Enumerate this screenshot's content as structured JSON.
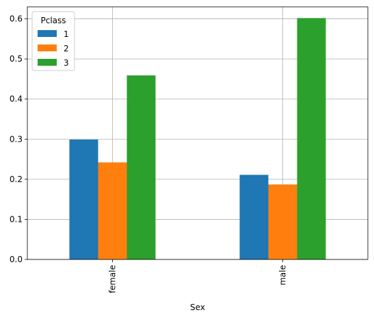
{
  "chart_data": {
    "type": "bar",
    "title": "",
    "xlabel": "Sex",
    "ylabel": "",
    "categories": [
      "female",
      "male"
    ],
    "series": [
      {
        "name": "1",
        "values": [
          0.299,
          0.211
        ],
        "color": "#1f77b4"
      },
      {
        "name": "2",
        "values": [
          0.242,
          0.187
        ],
        "color": "#ff7f0e"
      },
      {
        "name": "3",
        "values": [
          0.459,
          0.602
        ],
        "color": "#2ca02c"
      }
    ],
    "ylim": [
      0,
      0.63
    ],
    "yticks": [
      0.0,
      0.1,
      0.2,
      0.3,
      0.4,
      0.5,
      0.6
    ],
    "ytick_labels": [
      "0.0",
      "0.1",
      "0.2",
      "0.3",
      "0.4",
      "0.5",
      "0.6"
    ],
    "grid": true,
    "legend": {
      "title": "Pclass",
      "placement": "top-left"
    }
  }
}
